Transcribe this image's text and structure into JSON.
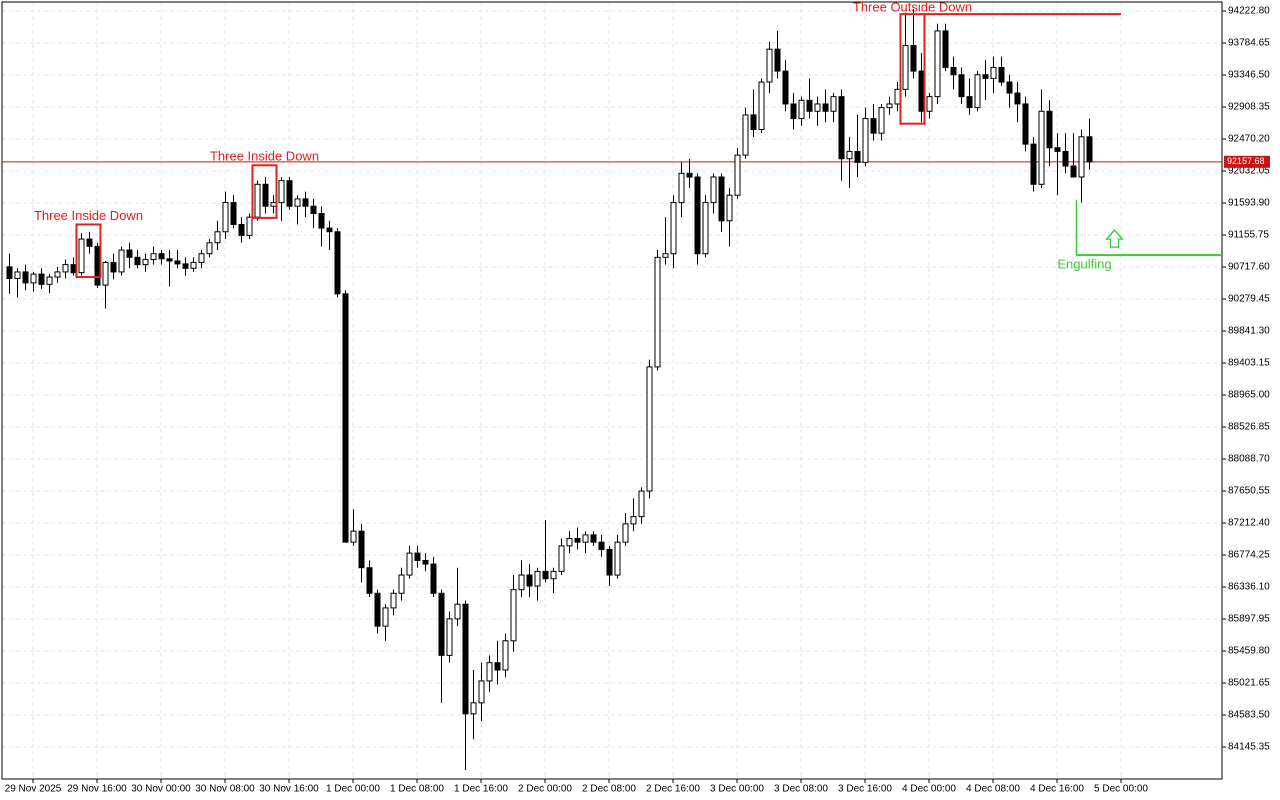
{
  "chart_data": {
    "type": "candlestick",
    "open": [
      90720,
      90560,
      90650,
      90500,
      90620,
      90480,
      90580,
      90650,
      90750,
      90640,
      91100,
      91000,
      90470,
      90780,
      90650,
      90950,
      90850,
      90750,
      90820,
      90900,
      90830,
      90800,
      90760,
      90700,
      90780,
      90900,
      91050,
      91200,
      91600,
      91300,
      91150,
      91400,
      91850,
      91550,
      91600,
      91900,
      91550,
      91650,
      91550,
      91450,
      91250,
      91200,
      90350,
      86950,
      87100,
      86600,
      86250,
      85800,
      86050,
      86250,
      86500,
      86800,
      86700,
      86650,
      86250,
      85400,
      85900,
      86100,
      84600,
      84750,
      85050,
      85300,
      85200,
      85600,
      86300,
      86500,
      86350,
      86550,
      86450,
      86550,
      86900,
      87000,
      86950,
      87050,
      86950,
      86850,
      86500,
      86950,
      87200,
      87300,
      87650,
      89350,
      90850,
      90900,
      91600,
      92000,
      91950,
      90900,
      91600,
      91950,
      91350,
      91700,
      92250,
      92800,
      92600,
      93250,
      93700,
      93400,
      92950,
      92750,
      93000,
      92850,
      92950,
      92850,
      93050,
      92200,
      92300,
      92150,
      92750,
      92550,
      92900,
      92950,
      93150,
      93750,
      93400,
      92850,
      93050,
      93950,
      93450,
      93350,
      93050,
      92900,
      93350,
      93300,
      93450,
      93250,
      93100,
      92950,
      92400,
      91850,
      92850,
      92350,
      92300,
      92100,
      91950,
      92500
    ],
    "high": [
      90900,
      90700,
      90750,
      90650,
      90700,
      90620,
      90720,
      90820,
      90850,
      91180,
      91200,
      91050,
      90800,
      90900,
      91000,
      91050,
      90950,
      90900,
      91000,
      90950,
      90950,
      90950,
      90850,
      90850,
      90950,
      91100,
      91350,
      91750,
      91700,
      91400,
      91450,
      91900,
      91950,
      91700,
      91950,
      91950,
      91700,
      91750,
      91650,
      91550,
      91350,
      91250,
      90400,
      87400,
      87200,
      86700,
      86300,
      86100,
      86300,
      86600,
      86900,
      86900,
      86800,
      86750,
      86300,
      86000,
      86600,
      86150,
      85200,
      85300,
      85400,
      85600,
      85700,
      86500,
      86700,
      86650,
      86600,
      87250,
      86600,
      87000,
      87100,
      87150,
      87100,
      87100,
      87050,
      86900,
      87050,
      87350,
      87550,
      87700,
      89450,
      90950,
      91400,
      91700,
      92150,
      92200,
      92000,
      91700,
      92000,
      92000,
      91800,
      92350,
      92900,
      93150,
      93300,
      93800,
      93950,
      93550,
      93100,
      93050,
      93300,
      93050,
      93150,
      93100,
      93150,
      92500,
      92800,
      92900,
      92950,
      92950,
      93050,
      93250,
      94200,
      94250,
      93650,
      93100,
      94050,
      94050,
      93600,
      93450,
      93300,
      93400,
      93550,
      93600,
      93600,
      93350,
      93250,
      93050,
      92500,
      93150,
      93000,
      92550,
      92550,
      92550,
      92600,
      92750
    ],
    "low": [
      90350,
      90300,
      90400,
      90380,
      90420,
      90360,
      90500,
      90560,
      90600,
      90600,
      90900,
      90430,
      90150,
      90550,
      90600,
      90700,
      90700,
      90650,
      90750,
      90750,
      90450,
      90700,
      90600,
      90650,
      90700,
      90850,
      90950,
      91100,
      91250,
      91050,
      91100,
      91350,
      91450,
      91450,
      91350,
      91500,
      91300,
      91400,
      91250,
      91000,
      90950,
      90300,
      86950,
      86900,
      86400,
      86200,
      85700,
      85600,
      85950,
      86150,
      86450,
      86600,
      86550,
      86200,
      84750,
      85300,
      85800,
      83830,
      84250,
      84500,
      84900,
      85000,
      85100,
      85450,
      86200,
      86200,
      86150,
      86400,
      86250,
      86500,
      86800,
      86850,
      86800,
      86900,
      86750,
      86350,
      86450,
      86900,
      87100,
      87200,
      87550,
      89300,
      90750,
      90700,
      91400,
      91800,
      90750,
      90850,
      91450,
      91200,
      91000,
      91650,
      92200,
      92500,
      92550,
      93100,
      93300,
      92850,
      92600,
      92650,
      92750,
      92650,
      92700,
      92700,
      91900,
      91800,
      91950,
      92100,
      92450,
      92450,
      92800,
      92850,
      93050,
      93300,
      92700,
      92750,
      92950,
      93400,
      93150,
      92950,
      92800,
      92850,
      93000,
      93100,
      93200,
      92900,
      92700,
      92300,
      91750,
      91800,
      92100,
      91700,
      92000,
      91950,
      91600,
      92050
    ],
    "close": [
      90560,
      90650,
      90500,
      90620,
      90480,
      90580,
      90650,
      90750,
      90640,
      91100,
      91000,
      90470,
      90780,
      90650,
      90950,
      90850,
      90750,
      90820,
      90900,
      90830,
      90800,
      90760,
      90700,
      90780,
      90900,
      91050,
      91200,
      91600,
      91300,
      91150,
      91400,
      91850,
      91550,
      91600,
      91900,
      91550,
      91650,
      91550,
      91450,
      91250,
      91200,
      90350,
      86950,
      87100,
      86600,
      86250,
      85800,
      86050,
      86250,
      86500,
      86800,
      86700,
      86650,
      86250,
      85400,
      85900,
      86100,
      84600,
      84750,
      85050,
      85300,
      85200,
      85600,
      86300,
      86500,
      86350,
      86550,
      86450,
      86550,
      86900,
      87000,
      86950,
      87050,
      86950,
      86850,
      86500,
      86950,
      87200,
      87300,
      87650,
      89350,
      90850,
      90900,
      91600,
      92000,
      91950,
      90900,
      91600,
      91950,
      91350,
      91700,
      92250,
      92800,
      92600,
      93250,
      93700,
      93400,
      92950,
      92750,
      93000,
      92850,
      92950,
      92850,
      93050,
      92200,
      92300,
      92150,
      92750,
      92550,
      92900,
      92950,
      93150,
      93750,
      93400,
      92850,
      93050,
      93950,
      93450,
      93350,
      93050,
      92900,
      93350,
      93300,
      93450,
      93250,
      93100,
      92950,
      92400,
      91850,
      92850,
      92350,
      92300,
      92100,
      91950,
      92500,
      92157.68
    ],
    "current_price": 92157.68,
    "ylim": [
      83707.2,
      94346.0
    ],
    "yticks": [
      {
        "value": 94222.8,
        "label": "94222.80"
      },
      {
        "value": 93784.65,
        "label": "93784.65"
      },
      {
        "value": 93346.5,
        "label": "93346.50"
      },
      {
        "value": 92908.35,
        "label": "92908.35"
      },
      {
        "value": 92470.2,
        "label": "92470.20"
      },
      {
        "value": 92032.05,
        "label": "92032.05"
      },
      {
        "value": 91593.9,
        "label": "91593.90"
      },
      {
        "value": 91155.75,
        "label": "91155.75"
      },
      {
        "value": 90717.6,
        "label": "90717.60"
      },
      {
        "value": 90279.45,
        "label": "90279.45"
      },
      {
        "value": 89841.3,
        "label": "89841.30"
      },
      {
        "value": 89403.15,
        "label": "89403.15"
      },
      {
        "value": 88965.0,
        "label": "88965.00"
      },
      {
        "value": 88526.85,
        "label": "88526.85"
      },
      {
        "value": 88088.7,
        "label": "88088.70"
      },
      {
        "value": 87650.55,
        "label": "87650.55"
      },
      {
        "value": 87212.4,
        "label": "87212.40"
      },
      {
        "value": 86774.25,
        "label": "86774.25"
      },
      {
        "value": 86336.1,
        "label": "86336.10"
      },
      {
        "value": 85897.95,
        "label": "85897.95"
      },
      {
        "value": 85459.8,
        "label": "85459.80"
      },
      {
        "value": 85021.65,
        "label": "85021.65"
      },
      {
        "value": 84583.5,
        "label": "84583.50"
      },
      {
        "value": 84145.35,
        "label": "84145.35"
      }
    ],
    "xlim": [
      -0.875,
      151.625
    ],
    "xticks": [
      {
        "value": 3,
        "label": "29 Nov 2025"
      },
      {
        "value": 11,
        "label": "29 Nov 16:00"
      },
      {
        "value": 19,
        "label": "30 Nov 00:00"
      },
      {
        "value": 27,
        "label": "30 Nov 08:00"
      },
      {
        "value": 35,
        "label": "30 Nov 16:00"
      },
      {
        "value": 43,
        "label": "1 Dec 00:00"
      },
      {
        "value": 51,
        "label": "1 Dec 08:00"
      },
      {
        "value": 59,
        "label": "1 Dec 16:00"
      },
      {
        "value": 67,
        "label": "2 Dec 00:00"
      },
      {
        "value": 75,
        "label": "2 Dec 08:00"
      },
      {
        "value": 83,
        "label": "2 Dec 16:00"
      },
      {
        "value": 91,
        "label": "3 Dec 00:00"
      },
      {
        "value": 99,
        "label": "3 Dec 08:00"
      },
      {
        "value": 107,
        "label": "3 Dec 16:00"
      },
      {
        "value": 115,
        "label": "4 Dec 00:00"
      },
      {
        "value": 123,
        "label": "4 Dec 08:00"
      },
      {
        "value": 131,
        "label": "4 Dec 16:00"
      },
      {
        "value": 139,
        "label": "5 Dec 00:00"
      }
    ],
    "grid": true,
    "patterns": [
      {
        "label": "Three Inside Down",
        "from": 9,
        "to": 11,
        "high": 91300,
        "low": 90580,
        "color": "#e0201b"
      },
      {
        "label": "Three Inside Down",
        "from": 31,
        "to": 33,
        "high": 92110,
        "low": 91390,
        "color": "#e0201b"
      },
      {
        "label": "Three Outside Down",
        "from": 112,
        "to": 114,
        "high": 94180,
        "low": 92680,
        "line_to": 139,
        "color": "#e0201b"
      },
      {
        "label": "Engulfing",
        "from": 134,
        "to": 134,
        "high": 91640,
        "low": 90880,
        "line_to": 151.625,
        "color": "#3cc83c"
      }
    ]
  }
}
